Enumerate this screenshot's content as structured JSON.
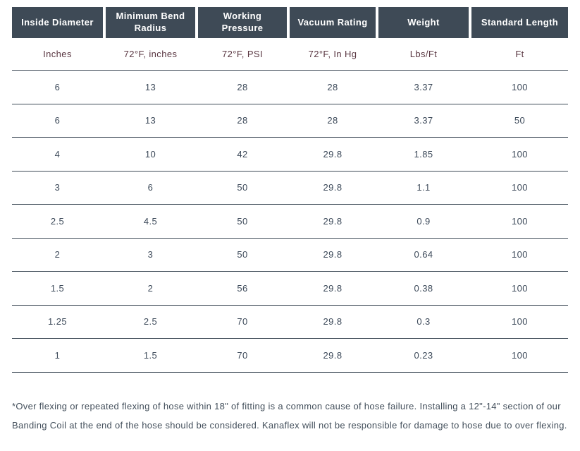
{
  "table": {
    "columns": [
      {
        "label": "Inside Diameter",
        "unit": "Inches"
      },
      {
        "label": "Minimum Bend Radius",
        "unit": "72°F, inches"
      },
      {
        "label": "Working Pressure",
        "unit": "72°F, PSI"
      },
      {
        "label": "Vacuum Rating",
        "unit": "72°F, In Hg"
      },
      {
        "label": "Weight",
        "unit": "Lbs/Ft"
      },
      {
        "label": "Standard Length",
        "unit": "Ft"
      }
    ],
    "rows": [
      [
        "6",
        "13",
        "28",
        "28",
        "3.37",
        "100"
      ],
      [
        "6",
        "13",
        "28",
        "28",
        "3.37",
        "50"
      ],
      [
        "4",
        "10",
        "42",
        "29.8",
        "1.85",
        "100"
      ],
      [
        "3",
        "6",
        "50",
        "29.8",
        "1.1",
        "100"
      ],
      [
        "2.5",
        "4.5",
        "50",
        "29.8",
        "0.9",
        "100"
      ],
      [
        "2",
        "3",
        "50",
        "29.8",
        "0.64",
        "100"
      ],
      [
        "1.5",
        "2",
        "56",
        "29.8",
        "0.38",
        "100"
      ],
      [
        "1.25",
        "2.5",
        "70",
        "29.8",
        "0.3",
        "100"
      ],
      [
        "1",
        "1.5",
        "70",
        "29.8",
        "0.23",
        "100"
      ]
    ]
  },
  "footnote": "*Over flexing or repeated flexing of hose within 18\" of fitting is a common cause of hose failure. Installing a 12\"-14\" section of our Banding Coil at the end of the hose should be considered. Kanaflex will not be responsible for damage to hose due to over flexing.",
  "colors": {
    "header_bg": "#3e4a56",
    "header_text": "#ffffff",
    "unit_text": "#5a3742",
    "data_text": "#3d4a5a",
    "border": "#3e4a56"
  }
}
